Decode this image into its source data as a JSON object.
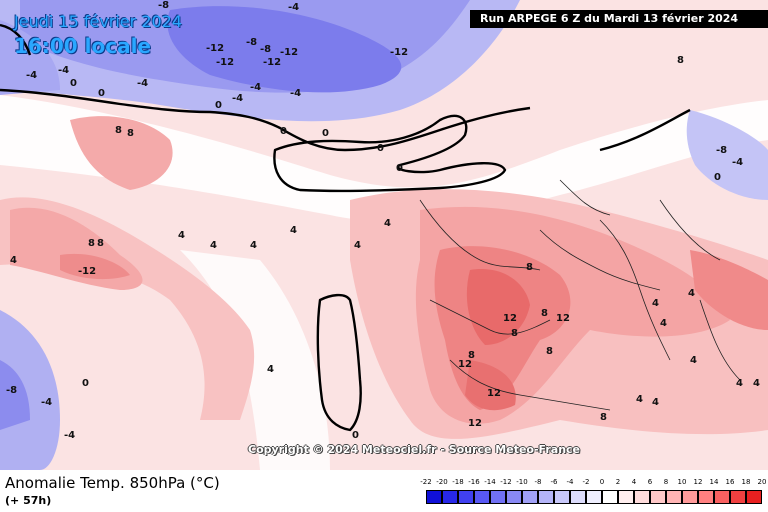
{
  "header": {
    "date_line": "Jeudi 15 février 2024",
    "time_line": "16:00 locale",
    "run_info": "Run ARPEGE 6 Z du Mardi 13 février 2024"
  },
  "watermark": "Copyright © 2024 Meteociel.fr - Source Meteo-France",
  "footer": {
    "variable_title": "Anomalie Temp. 850hPa (°C)",
    "lead_time": "(+ 57h)"
  },
  "legend": {
    "ticks": [
      "-22",
      "-20",
      "-18",
      "-16",
      "-14",
      "-12",
      "-10",
      "-8",
      "-6",
      "-4",
      "-2",
      "0",
      "2",
      "4",
      "6",
      "8",
      "10",
      "12",
      "14",
      "16",
      "18",
      "20"
    ],
    "colors": [
      "#1010d8",
      "#2828e8",
      "#4040f0",
      "#5858f4",
      "#7070f4",
      "#8888f4",
      "#a0a0f6",
      "#b4b4f8",
      "#c8c8fa",
      "#dcdcfc",
      "#eeeefe",
      "#ffffff",
      "#ffeeee",
      "#ffdcdc",
      "#ffc8c8",
      "#ffb4b4",
      "#ff9a9a",
      "#ff8080",
      "#f86060",
      "#f04040",
      "#e82020"
    ]
  },
  "contour_labels": [
    "-8",
    "-8",
    "-8",
    "-12",
    "-12",
    "-12",
    "-12",
    "-12",
    "-4",
    "-4",
    "-4",
    "-4",
    "-4",
    "-4",
    "-4",
    "-4",
    "0",
    "0",
    "0",
    "0",
    "0",
    "0",
    "0",
    "0",
    "0",
    "8",
    "8",
    "8",
    "8",
    "8",
    "-12",
    "-8",
    "4",
    "4",
    "4",
    "4",
    "4",
    "4",
    "4",
    "4",
    "4",
    "4",
    "8",
    "8",
    "8",
    "8",
    "8",
    "12",
    "12",
    "12",
    "12",
    "12",
    "8",
    "4",
    "4",
    "4",
    "4",
    "4",
    "4",
    "0",
    "-8",
    "-4",
    "-4"
  ],
  "colors": {
    "title_blue": "#2aa7ff",
    "banner_bg": "#000000",
    "coastline": "#000000"
  }
}
